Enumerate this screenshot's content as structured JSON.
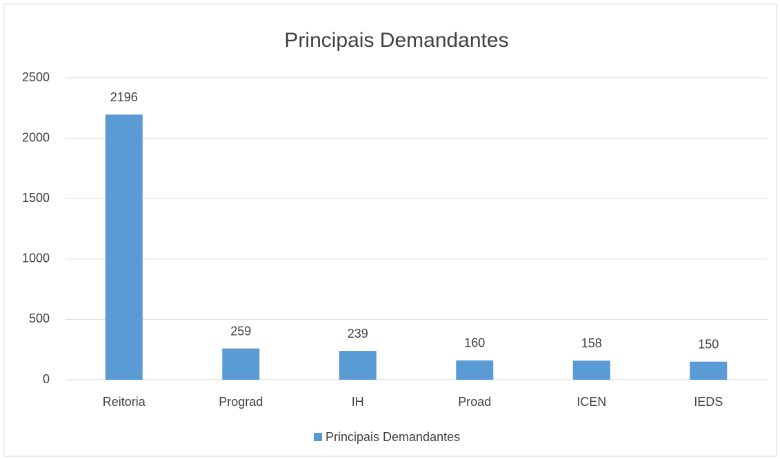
{
  "chart_data": {
    "type": "bar",
    "title": "Principais Demandantes",
    "categories": [
      "Reitoria",
      "Prograd",
      "IH",
      "Proad",
      "ICEN",
      "IEDS"
    ],
    "series": [
      {
        "name": "Principais Demandantes",
        "color": "#5b9bd5",
        "values": [
          2196,
          259,
          239,
          160,
          158,
          150
        ]
      }
    ],
    "ylim": [
      0,
      2500
    ],
    "yticks": [
      0,
      500,
      1000,
      1500,
      2000,
      2500
    ],
    "grid": true,
    "legend": "bottom"
  }
}
